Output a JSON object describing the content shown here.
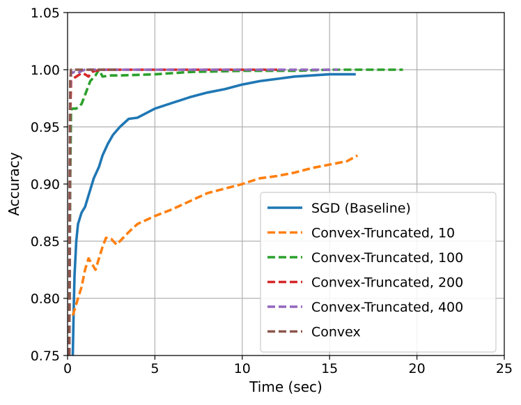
{
  "chart_data": {
    "type": "line",
    "xlabel": "Time (sec)",
    "ylabel": "Accuracy",
    "xlim": [
      0,
      25
    ],
    "ylim": [
      0.75,
      1.05
    ],
    "xticks": [
      "0",
      "5",
      "10",
      "15",
      "20",
      "25"
    ],
    "yticks": [
      "0.75",
      "0.80",
      "0.85",
      "0.90",
      "0.95",
      "1.00",
      "1.05"
    ],
    "grid": true,
    "legend_position": "lower-right",
    "series": [
      {
        "name": "SGD (Baseline)",
        "color": "#1f77b4",
        "dash": "solid",
        "x": [
          0.3,
          0.35,
          0.4,
          0.5,
          0.6,
          0.8,
          1.0,
          1.2,
          1.5,
          1.8,
          2.0,
          2.3,
          2.6,
          3.0,
          3.5,
          4.0,
          5.0,
          6.0,
          7.0,
          8.0,
          9.0,
          10.0,
          11.0,
          12.0,
          13.0,
          14.0,
          15.0,
          16.0,
          16.5
        ],
        "y": [
          0.75,
          0.79,
          0.82,
          0.85,
          0.865,
          0.875,
          0.88,
          0.89,
          0.905,
          0.915,
          0.925,
          0.935,
          0.943,
          0.95,
          0.957,
          0.958,
          0.966,
          0.971,
          0.976,
          0.98,
          0.983,
          0.987,
          0.99,
          0.992,
          0.994,
          0.995,
          0.996,
          0.996,
          0.996
        ]
      },
      {
        "name": "Convex-Truncated, 10",
        "color": "#ff7f0e",
        "dash": "dashed",
        "x": [
          0.3,
          0.4,
          0.6,
          0.8,
          1.0,
          1.2,
          1.4,
          1.6,
          1.8,
          2.0,
          2.2,
          2.5,
          2.8,
          3.0,
          3.5,
          4.0,
          5.0,
          6.0,
          7.0,
          8.0,
          9.0,
          10.0,
          11.0,
          12.0,
          13.0,
          14.0,
          15.0,
          16.0,
          16.6
        ],
        "y": [
          0.785,
          0.79,
          0.8,
          0.81,
          0.825,
          0.835,
          0.83,
          0.825,
          0.835,
          0.845,
          0.853,
          0.852,
          0.847,
          0.85,
          0.858,
          0.865,
          0.872,
          0.878,
          0.885,
          0.892,
          0.896,
          0.9,
          0.905,
          0.907,
          0.91,
          0.914,
          0.917,
          0.92,
          0.925
        ]
      },
      {
        "name": "Convex-Truncated, 100",
        "color": "#2ca02c",
        "dash": "dashed",
        "x": [
          0.1,
          0.15,
          0.2,
          0.3,
          0.5,
          0.8,
          1.0,
          1.3,
          1.6,
          1.8,
          2.0,
          2.5,
          3.0,
          5.0,
          7.0,
          10.0,
          13.0,
          15.0,
          17.0,
          19.2
        ],
        "y": [
          0.75,
          0.9,
          0.965,
          0.966,
          0.966,
          0.97,
          0.978,
          0.99,
          0.995,
          1.0,
          0.994,
          0.995,
          0.995,
          0.996,
          0.998,
          0.999,
          0.999,
          1.0,
          1.0,
          1.0
        ]
      },
      {
        "name": "Convex-Truncated, 200",
        "color": "#d62728",
        "dash": "dashed",
        "x": [
          0.1,
          0.15,
          0.2,
          0.4,
          0.6,
          0.8,
          1.0,
          1.2,
          1.4,
          1.6,
          2.0,
          3.0,
          5.0,
          8.0,
          10.0,
          12.0
        ],
        "y": [
          0.75,
          0.96,
          0.99,
          0.993,
          0.995,
          0.997,
          0.996,
          0.994,
          0.998,
          0.999,
          1.0,
          1.0,
          1.0,
          1.0,
          1.0,
          1.0
        ]
      },
      {
        "name": "Convex-Truncated, 400",
        "color": "#9467bd",
        "dash": "dashed",
        "x": [
          0.1,
          0.15,
          0.2,
          0.4,
          0.6,
          0.8,
          1.0,
          2.0,
          4.0,
          8.0,
          12.0,
          15.5
        ],
        "y": [
          0.75,
          0.98,
          0.997,
          0.998,
          0.997,
          0.999,
          1.0,
          1.0,
          1.0,
          1.0,
          1.0,
          1.0
        ]
      },
      {
        "name": "Convex",
        "color": "#8c564b",
        "dash": "dashed",
        "x": [
          0.1,
          0.12,
          0.15,
          0.2,
          0.3,
          0.5,
          1.0,
          2.0,
          3.0
        ],
        "y": [
          0.75,
          0.9,
          0.99,
          1.0,
          1.0,
          1.0,
          1.0,
          1.0,
          1.0
        ]
      }
    ]
  }
}
